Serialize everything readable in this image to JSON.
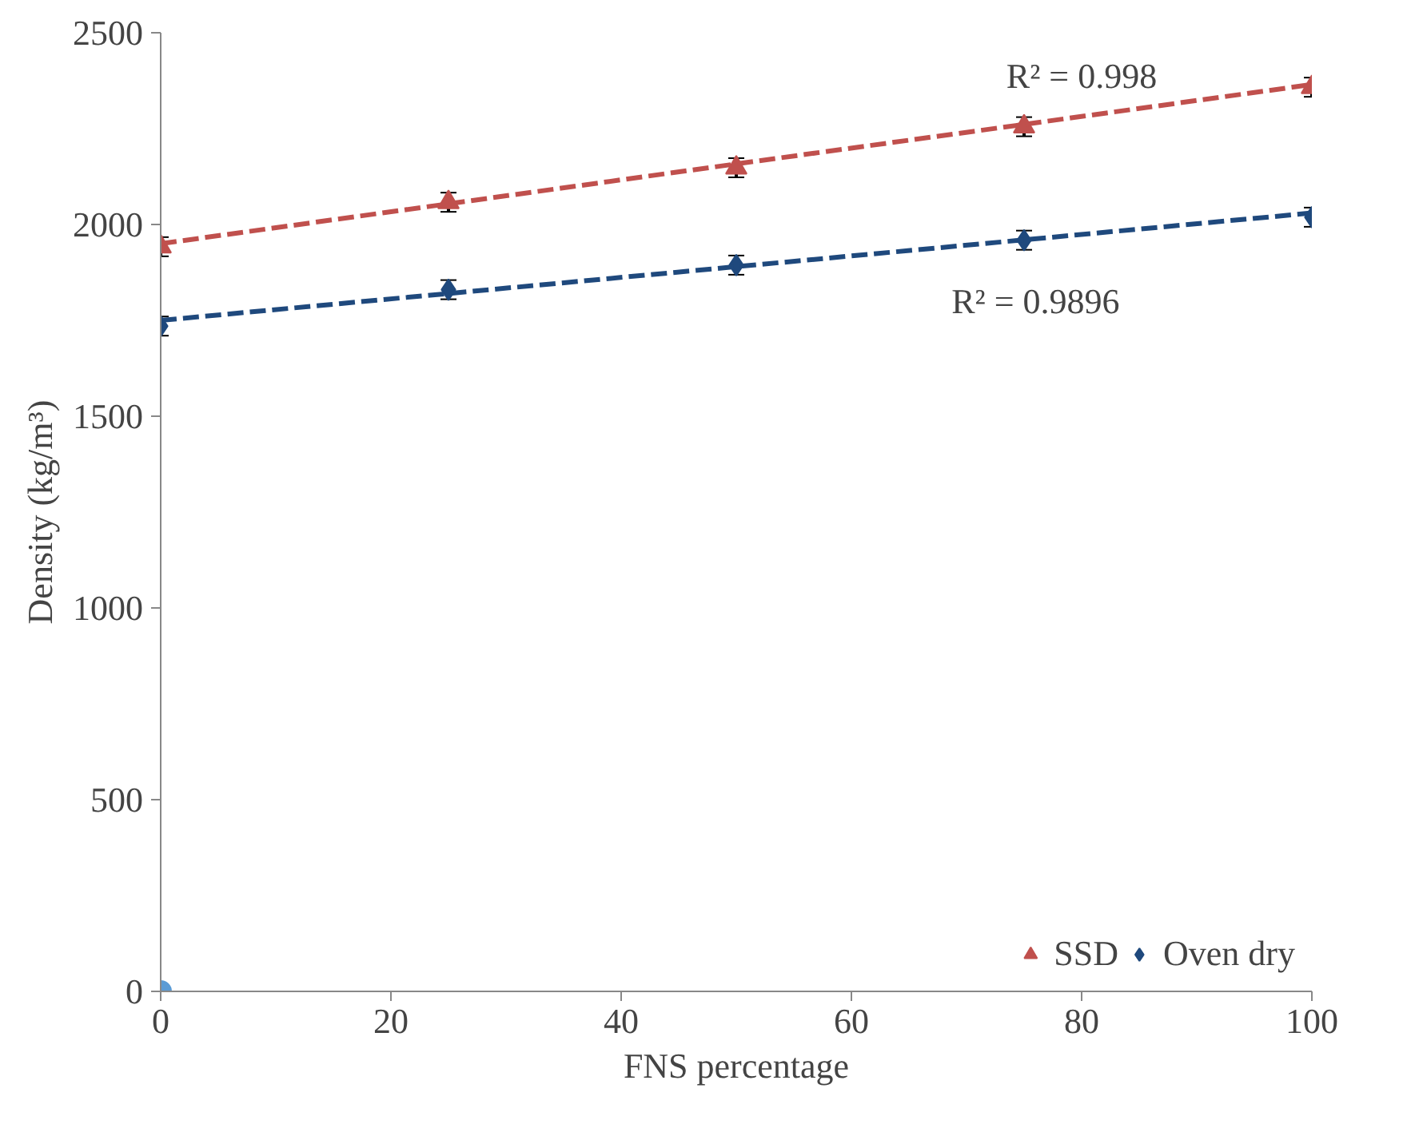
{
  "chart_data": {
    "type": "scatter",
    "xlabel": "FNS percentage",
    "ylabel": "Density (kg/m³)",
    "x": [
      0,
      25,
      50,
      75,
      100
    ],
    "xlim": [
      0,
      100
    ],
    "xticks": [
      0,
      20,
      40,
      60,
      80,
      100
    ],
    "ylim": [
      0,
      2500
    ],
    "yticks": [
      0,
      500,
      1000,
      1500,
      2000,
      2500
    ],
    "grid": false,
    "legend": "bottom right",
    "series": [
      {
        "name": "SSD",
        "color": "#c0504d",
        "marker": "triangle",
        "values": [
          1942,
          2058,
          2148,
          2255,
          2358
        ],
        "errors": [
          25,
          25,
          25,
          25,
          25
        ]
      },
      {
        "name": "Oven dry",
        "color": "#1f497d",
        "marker": "diamond",
        "values": [
          1735,
          1830,
          1894,
          1959,
          2019
        ],
        "errors": [
          25,
          25,
          25,
          25,
          25
        ]
      },
      {
        "type": "line",
        "color": "#c0504d",
        "line_style": "dashed",
        "values": [
          1950,
          2054,
          2158,
          2261,
          2365
        ]
      },
      {
        "type": "line",
        "color": "#1f497d",
        "line_style": "dashed",
        "values": [
          1750,
          1820,
          1890,
          1960,
          2030
        ]
      },
      {
        "color": "#5b9bd5",
        "marker": "circle",
        "values": [
          0,
          null,
          null,
          null,
          null
        ]
      }
    ],
    "annotations": [
      "R² = 0.998",
      "R² = 0.9896"
    ]
  }
}
